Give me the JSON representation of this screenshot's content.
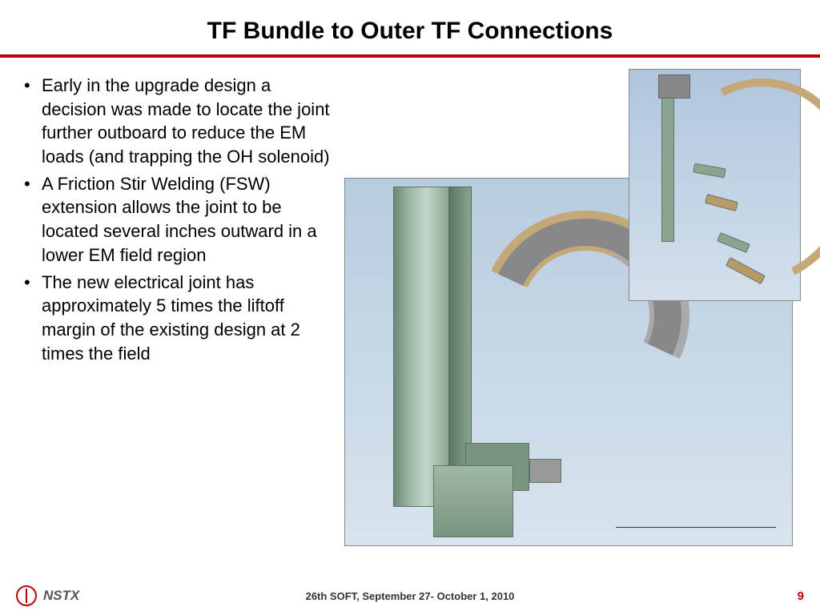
{
  "title": "TF Bundle to Outer TF Connections",
  "bullets": [
    "Early in the upgrade design a decision was made to locate the joint further outboard to reduce the EM loads (and trapping the OH solenoid)",
    "A Friction Stir Welding (FSW) extension allows the joint to be located several inches outward in a lower EM field region",
    "The new electrical joint has approximately 5 times the liftoff margin of the existing design at 2 times the field"
  ],
  "footer": {
    "org": "NSTX",
    "conference": "26th SOFT, September 27- October 1, 2010",
    "page": "9"
  },
  "colors": {
    "divider": "#c00000",
    "page_number": "#c00000",
    "background": "#ffffff",
    "figure_bg_top": "#b8cce0",
    "figure_bg_bottom": "#d8e4ee",
    "metal_green": "#8aa490",
    "metal_copper": "#b89a6a",
    "metal_grey": "#999999"
  },
  "figures": {
    "main": "CAD rendering of TF bundle joint assembly with vertical green conductor bars, arched copper/steel ring joint, and mounting blocks",
    "inset": "CAD rendering of single outer TF leg arc with attached connection segments"
  }
}
